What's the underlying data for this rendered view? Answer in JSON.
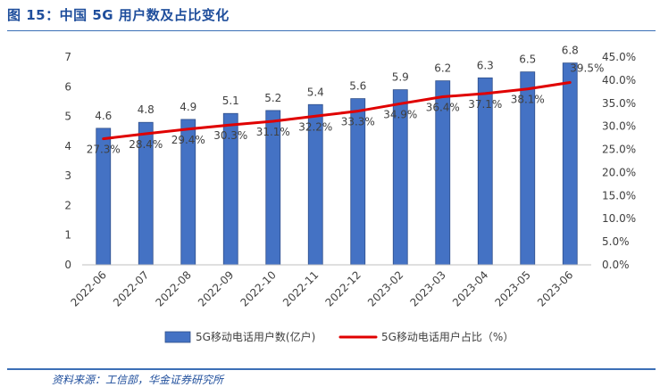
{
  "figure": {
    "title": "图 15：中国 5G 用户数及占比变化",
    "source": "资料来源：工信部，华金证券研究所"
  },
  "colors": {
    "bar_fill": "#4472c4",
    "bar_stroke": "#2f4f8a",
    "line": "#e00000",
    "rule": "#3b6fb6",
    "title": "#1f4e9c"
  },
  "chart_data": {
    "type": "bar+line",
    "categories": [
      "2022-06",
      "2022-07",
      "2022-08",
      "2022-09",
      "2022-10",
      "2022-11",
      "2022-12",
      "2023-02",
      "2023-03",
      "2023-04",
      "2023-05",
      "2023-06"
    ],
    "series": [
      {
        "name": "5G移动电话用户数(亿户)",
        "type": "bar",
        "axis": "left",
        "values": [
          4.6,
          4.8,
          4.9,
          5.1,
          5.2,
          5.4,
          5.6,
          5.9,
          6.2,
          6.3,
          6.5,
          6.8
        ],
        "labels": [
          "4.6",
          "4.8",
          "4.9",
          "5.1",
          "5.2",
          "5.4",
          "5.6",
          "5.9",
          "6.2",
          "6.3",
          "6.5",
          "6.8"
        ]
      },
      {
        "name": "5G移动电话用户占比（%）",
        "type": "line",
        "axis": "right",
        "values": [
          27.3,
          28.4,
          29.4,
          30.3,
          31.1,
          32.2,
          33.3,
          34.9,
          36.4,
          37.1,
          38.1,
          39.5
        ],
        "labels": [
          "27.3%",
          "28.4%",
          "29.4%",
          "30.3%",
          "31.1%",
          "32.2%",
          "33.3%",
          "34.9%",
          "36.4%",
          "37.1%",
          "38.1%",
          "39.5%"
        ]
      }
    ],
    "y_left": {
      "min": 0,
      "max": 7,
      "ticks": [
        "0",
        "1",
        "2",
        "3",
        "4",
        "5",
        "6",
        "7"
      ]
    },
    "y_right": {
      "min": 0,
      "max": 45,
      "ticks": [
        "0.0%",
        "5.0%",
        "10.0%",
        "15.0%",
        "20.0%",
        "25.0%",
        "30.0%",
        "35.0%",
        "40.0%",
        "45.0%"
      ]
    },
    "grid": false,
    "legend_position": "bottom"
  }
}
